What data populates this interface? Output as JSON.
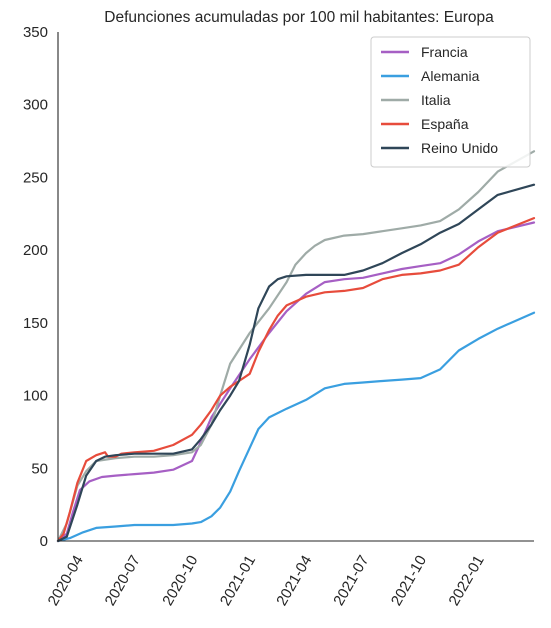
{
  "chart_data": {
    "type": "line",
    "title": "Defunciones acumuladas por 100 mil habitantes: Europa",
    "xlabel": "",
    "ylabel": "",
    "x_range": [
      "2020-03-01",
      "2022-03-31"
    ],
    "ylim": [
      0,
      350
    ],
    "y_ticks": [
      0,
      50,
      100,
      150,
      200,
      250,
      300,
      350
    ],
    "x_ticks": [
      "2020-04",
      "2020-07",
      "2020-10",
      "2021-01",
      "2021-04",
      "2021-07",
      "2021-10",
      "2022-01"
    ],
    "grid": false,
    "legend_position": "top-right",
    "series": [
      {
        "name": "Francia",
        "color": "#a65fc4",
        "points": [
          [
            "2020-03-01",
            0
          ],
          [
            "2020-03-15",
            5
          ],
          [
            "2020-03-25",
            20
          ],
          [
            "2020-04-05",
            35
          ],
          [
            "2020-04-20",
            41
          ],
          [
            "2020-05-10",
            44
          ],
          [
            "2020-06-01",
            45
          ],
          [
            "2020-07-01",
            46
          ],
          [
            "2020-08-01",
            47
          ],
          [
            "2020-09-01",
            49
          ],
          [
            "2020-10-01",
            55
          ],
          [
            "2020-10-15",
            68
          ],
          [
            "2020-11-01",
            85
          ],
          [
            "2020-12-01",
            105
          ],
          [
            "2021-01-01",
            125
          ],
          [
            "2021-02-01",
            143
          ],
          [
            "2021-03-01",
            158
          ],
          [
            "2021-04-01",
            170
          ],
          [
            "2021-05-01",
            178
          ],
          [
            "2021-06-01",
            180
          ],
          [
            "2021-07-01",
            181
          ],
          [
            "2021-08-01",
            184
          ],
          [
            "2021-09-01",
            187
          ],
          [
            "2021-10-01",
            189
          ],
          [
            "2021-11-01",
            191
          ],
          [
            "2021-12-01",
            197
          ],
          [
            "2022-01-01",
            206
          ],
          [
            "2022-02-01",
            213
          ],
          [
            "2022-03-31",
            219
          ]
        ]
      },
      {
        "name": "Alemania",
        "color": "#3a9fe0",
        "points": [
          [
            "2020-03-01",
            0
          ],
          [
            "2020-03-20",
            2
          ],
          [
            "2020-04-10",
            6
          ],
          [
            "2020-05-01",
            9
          ],
          [
            "2020-06-01",
            10
          ],
          [
            "2020-07-01",
            11
          ],
          [
            "2020-08-01",
            11
          ],
          [
            "2020-09-01",
            11
          ],
          [
            "2020-10-01",
            12
          ],
          [
            "2020-10-15",
            13
          ],
          [
            "2020-11-01",
            17
          ],
          [
            "2020-11-15",
            23
          ],
          [
            "2020-12-01",
            34
          ],
          [
            "2020-12-15",
            48
          ],
          [
            "2021-01-01",
            64
          ],
          [
            "2021-01-15",
            77
          ],
          [
            "2021-02-01",
            85
          ],
          [
            "2021-03-01",
            91
          ],
          [
            "2021-04-01",
            97
          ],
          [
            "2021-05-01",
            105
          ],
          [
            "2021-06-01",
            108
          ],
          [
            "2021-07-01",
            109
          ],
          [
            "2021-08-01",
            110
          ],
          [
            "2021-09-01",
            111
          ],
          [
            "2021-10-01",
            112
          ],
          [
            "2021-11-01",
            118
          ],
          [
            "2021-12-01",
            131
          ],
          [
            "2022-01-01",
            139
          ],
          [
            "2022-02-01",
            146
          ],
          [
            "2022-03-31",
            157
          ]
        ]
      },
      {
        "name": "Italia",
        "color": "#9faba7",
        "points": [
          [
            "2020-03-01",
            0
          ],
          [
            "2020-03-15",
            12
          ],
          [
            "2020-04-01",
            38
          ],
          [
            "2020-04-15",
            48
          ],
          [
            "2020-05-01",
            55
          ],
          [
            "2020-06-01",
            57
          ],
          [
            "2020-07-01",
            58
          ],
          [
            "2020-08-01",
            58
          ],
          [
            "2020-09-01",
            59
          ],
          [
            "2020-10-01",
            61
          ],
          [
            "2020-10-15",
            66
          ],
          [
            "2020-11-01",
            80
          ],
          [
            "2020-11-15",
            100
          ],
          [
            "2020-12-01",
            122
          ],
          [
            "2021-01-01",
            143
          ],
          [
            "2021-02-01",
            160
          ],
          [
            "2021-03-01",
            178
          ],
          [
            "2021-03-15",
            190
          ],
          [
            "2021-04-01",
            198
          ],
          [
            "2021-04-15",
            203
          ],
          [
            "2021-05-01",
            207
          ],
          [
            "2021-06-01",
            210
          ],
          [
            "2021-07-01",
            211
          ],
          [
            "2021-08-01",
            213
          ],
          [
            "2021-09-01",
            215
          ],
          [
            "2021-10-01",
            217
          ],
          [
            "2021-11-01",
            220
          ],
          [
            "2021-12-01",
            228
          ],
          [
            "2022-01-01",
            240
          ],
          [
            "2022-02-01",
            254
          ],
          [
            "2022-03-31",
            268
          ]
        ]
      },
      {
        "name": "España",
        "color": "#e74c3c",
        "points": [
          [
            "2020-03-01",
            0
          ],
          [
            "2020-03-10",
            5
          ],
          [
            "2020-03-20",
            20
          ],
          [
            "2020-04-01",
            40
          ],
          [
            "2020-04-15",
            55
          ],
          [
            "2020-05-01",
            59
          ],
          [
            "2020-05-15",
            61
          ],
          [
            "2020-05-20",
            58
          ],
          [
            "2020-06-01",
            58
          ],
          [
            "2020-06-10",
            60
          ],
          [
            "2020-07-01",
            61
          ],
          [
            "2020-08-01",
            62
          ],
          [
            "2020-09-01",
            66
          ],
          [
            "2020-10-01",
            73
          ],
          [
            "2020-10-15",
            80
          ],
          [
            "2020-11-01",
            90
          ],
          [
            "2020-11-15",
            100
          ],
          [
            "2020-12-01",
            106
          ],
          [
            "2020-12-15",
            110
          ],
          [
            "2021-01-01",
            115
          ],
          [
            "2021-01-15",
            130
          ],
          [
            "2021-02-01",
            145
          ],
          [
            "2021-02-15",
            155
          ],
          [
            "2021-03-01",
            162
          ],
          [
            "2021-04-01",
            168
          ],
          [
            "2021-05-01",
            171
          ],
          [
            "2021-06-01",
            172
          ],
          [
            "2021-07-01",
            174
          ],
          [
            "2021-08-01",
            180
          ],
          [
            "2021-09-01",
            183
          ],
          [
            "2021-10-01",
            184
          ],
          [
            "2021-11-01",
            186
          ],
          [
            "2021-12-01",
            190
          ],
          [
            "2022-01-01",
            202
          ],
          [
            "2022-02-01",
            212
          ],
          [
            "2022-03-31",
            222
          ]
        ]
      },
      {
        "name": "Reino Unido",
        "color": "#2f4658",
        "points": [
          [
            "2020-03-01",
            0
          ],
          [
            "2020-03-15",
            3
          ],
          [
            "2020-04-01",
            25
          ],
          [
            "2020-04-15",
            45
          ],
          [
            "2020-05-01",
            55
          ],
          [
            "2020-05-15",
            58
          ],
          [
            "2020-06-01",
            59
          ],
          [
            "2020-07-01",
            60
          ],
          [
            "2020-08-01",
            60
          ],
          [
            "2020-09-01",
            60
          ],
          [
            "2020-10-01",
            63
          ],
          [
            "2020-10-15",
            70
          ],
          [
            "2020-11-01",
            80
          ],
          [
            "2020-11-15",
            90
          ],
          [
            "2020-12-01",
            100
          ],
          [
            "2020-12-15",
            110
          ],
          [
            "2021-01-01",
            135
          ],
          [
            "2021-01-15",
            160
          ],
          [
            "2021-02-01",
            175
          ],
          [
            "2021-02-15",
            180
          ],
          [
            "2021-03-01",
            182
          ],
          [
            "2021-04-01",
            183
          ],
          [
            "2021-05-01",
            183
          ],
          [
            "2021-06-01",
            183
          ],
          [
            "2021-07-01",
            186
          ],
          [
            "2021-08-01",
            191
          ],
          [
            "2021-09-01",
            198
          ],
          [
            "2021-10-01",
            204
          ],
          [
            "2021-11-01",
            212
          ],
          [
            "2021-12-01",
            218
          ],
          [
            "2022-01-01",
            228
          ],
          [
            "2022-02-01",
            238
          ],
          [
            "2022-03-31",
            245
          ]
        ]
      }
    ]
  }
}
